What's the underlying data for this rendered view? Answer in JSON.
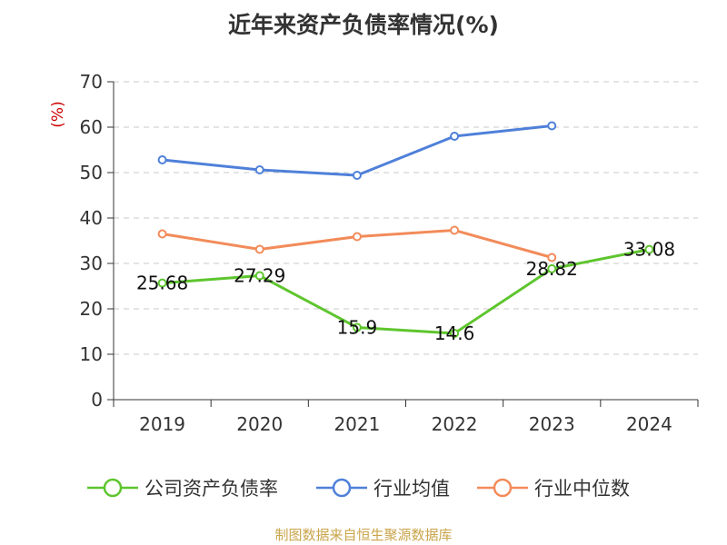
{
  "chart_data": {
    "type": "line",
    "title": "近年来资产负债率情况(%)",
    "ylabel": "(%)",
    "xlabel": "",
    "categories": [
      "2019",
      "2020",
      "2021",
      "2022",
      "2023",
      "2024"
    ],
    "ylim": [
      0,
      70
    ],
    "yticks": [
      0,
      10,
      20,
      30,
      40,
      50,
      60,
      70
    ],
    "grid": true,
    "legend_position": "bottom",
    "series": [
      {
        "name": "公司资产负债率",
        "color": "#5ec52e",
        "values": [
          25.68,
          27.29,
          15.9,
          14.6,
          28.82,
          33.08
        ],
        "labels": [
          "25.68",
          "27.29",
          "15.9",
          "14.6",
          "28.82",
          "33.08"
        ]
      },
      {
        "name": "行业均值",
        "color": "#4f80d9",
        "values": [
          52.8,
          50.6,
          49.4,
          58.0,
          60.3,
          null
        ]
      },
      {
        "name": "行业中位数",
        "color": "#f28b5a",
        "values": [
          36.5,
          33.1,
          35.9,
          37.3,
          31.3,
          null
        ]
      }
    ]
  },
  "source": "制图数据来自恒生聚源数据库"
}
